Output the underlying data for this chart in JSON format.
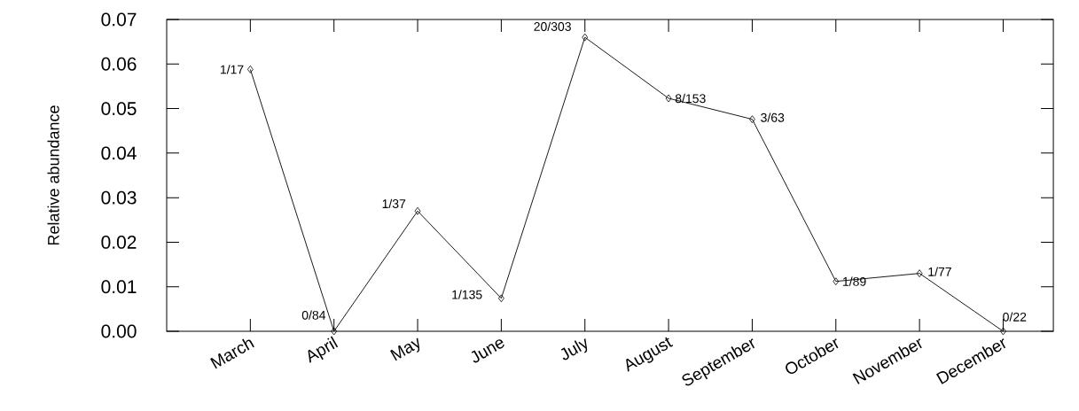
{
  "chart_data": {
    "type": "line",
    "ylabel": "Relative abundance",
    "categories": [
      "March",
      "April",
      "May",
      "June",
      "July",
      "August",
      "September",
      "October",
      "November",
      "December"
    ],
    "values": [
      0.0588,
      0,
      0.027,
      0.0074,
      0.066,
      0.0523,
      0.0476,
      0.0112,
      0.013,
      0
    ],
    "value_labels": [
      "1/17",
      "0/84",
      "1/37",
      "1/135",
      "20/303",
      "8/153",
      "3/63",
      "1/89",
      "1/77",
      "0/22"
    ],
    "color": "#000000",
    "marker": "diamond",
    "line_style": "solid",
    "ylim": [
      0,
      0.07
    ],
    "yticks": [
      {
        "value": 0,
        "label": "0.00"
      },
      {
        "value": 0.01,
        "label": "0.01"
      },
      {
        "value": 0.02,
        "label": "0.02"
      },
      {
        "value": 0.03,
        "label": "0.03"
      },
      {
        "value": 0.04,
        "label": "0.04"
      },
      {
        "value": 0.05,
        "label": "0.05"
      },
      {
        "value": 0.06,
        "label": "0.06"
      },
      {
        "value": 0.07,
        "label": "0.07"
      }
    ]
  }
}
